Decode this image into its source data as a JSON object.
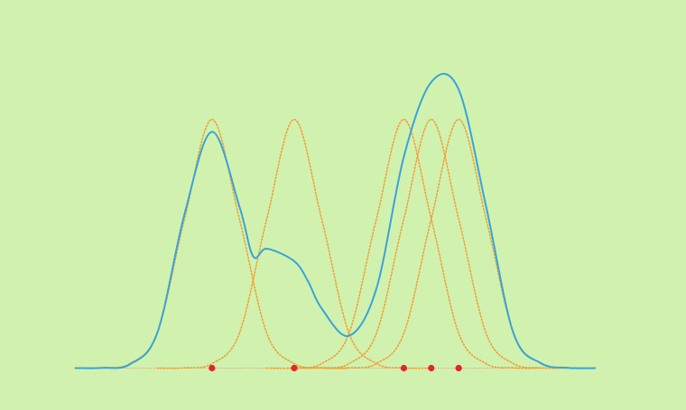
{
  "colors": {
    "background": "#d1f2ae",
    "density_curve": "#3aa3d8",
    "kernel_curves": "#f0a03c",
    "sample_points": "#e8212b",
    "baseline": "#e0a070"
  },
  "chart_data": {
    "type": "line",
    "title": "",
    "xlabel": "",
    "ylabel": "",
    "axes_visible": false,
    "grid": false,
    "legend": "none",
    "xlim": [
      -4,
      15
    ],
    "ylim": [
      0,
      1.3
    ],
    "kernel": "gaussian",
    "bandwidth": 1.0,
    "samples": [
      1,
      4,
      8,
      9,
      10
    ],
    "series": [
      {
        "style": "solid",
        "role": "sum",
        "x": [
          -4,
          -3,
          -2,
          -1,
          0,
          1,
          2,
          2.5,
          3,
          4,
          4.5,
          5,
          6,
          7,
          8,
          9,
          10,
          11,
          12,
          13,
          14,
          15
        ],
        "y": [
          0.0,
          0.001,
          0.015,
          0.14,
          0.62,
          0.95,
          0.65,
          0.45,
          0.48,
          0.43,
          0.35,
          0.24,
          0.13,
          0.32,
          0.85,
          1.15,
          1.12,
          0.65,
          0.14,
          0.02,
          0.001,
          0.0
        ]
      },
      {
        "style": "dotted",
        "role": "kernel",
        "x": [
          -4,
          -3,
          -2,
          -1,
          0,
          1,
          2,
          3,
          4,
          5,
          6
        ],
        "y": [
          0.0,
          0.001,
          0.018,
          0.14,
          0.6,
          1.0,
          0.6,
          0.14,
          0.018,
          0.001,
          0.0
        ]
      },
      {
        "style": "dotted",
        "role": "kernel",
        "x": [
          -1,
          0,
          1,
          2,
          3,
          4,
          5,
          6,
          7,
          8,
          9
        ],
        "y": [
          0.0,
          0.001,
          0.018,
          0.14,
          0.6,
          1.0,
          0.6,
          0.14,
          0.018,
          0.001,
          0.0
        ]
      },
      {
        "style": "dotted",
        "role": "kernel",
        "x": [
          3,
          4,
          5,
          6,
          7,
          8,
          9,
          10,
          11,
          12,
          13
        ],
        "y": [
          0.0,
          0.001,
          0.018,
          0.14,
          0.6,
          1.0,
          0.6,
          0.14,
          0.018,
          0.001,
          0.0
        ]
      },
      {
        "style": "dotted",
        "role": "kernel",
        "x": [
          4,
          5,
          6,
          7,
          8,
          9,
          10,
          11,
          12,
          13,
          14
        ],
        "y": [
          0.0,
          0.001,
          0.018,
          0.14,
          0.6,
          1.0,
          0.6,
          0.14,
          0.018,
          0.001,
          0.0
        ]
      },
      {
        "style": "dotted",
        "role": "kernel",
        "x": [
          5,
          6,
          7,
          8,
          9,
          10,
          11,
          12,
          13,
          14,
          15
        ],
        "y": [
          0.0,
          0.001,
          0.018,
          0.14,
          0.6,
          1.0,
          0.6,
          0.14,
          0.018,
          0.001,
          0.0
        ]
      }
    ]
  }
}
